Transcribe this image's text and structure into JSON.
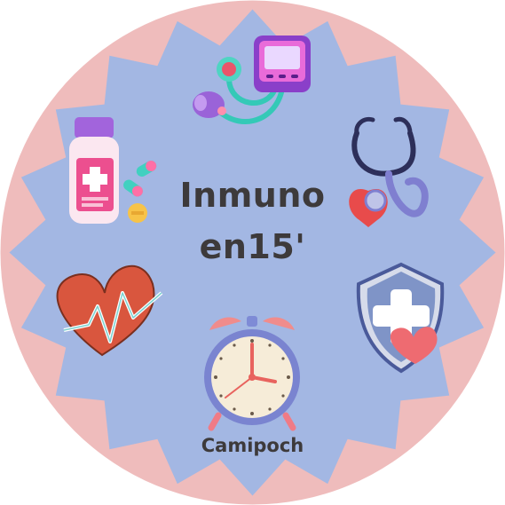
{
  "badge": {
    "title_line1": "Inmuno",
    "title_line2": "en15'",
    "author": "Camipoch"
  },
  "colors": {
    "outer_circle": "#efbcbc",
    "star_fill": "#a3b7e3",
    "text": "#3d3a3b"
  },
  "icons": [
    "blood-pressure-monitor-icon",
    "stethoscope-icon",
    "medicine-bottle-icon",
    "heartbeat-icon",
    "shield-cross-icon",
    "alarm-clock-icon"
  ]
}
